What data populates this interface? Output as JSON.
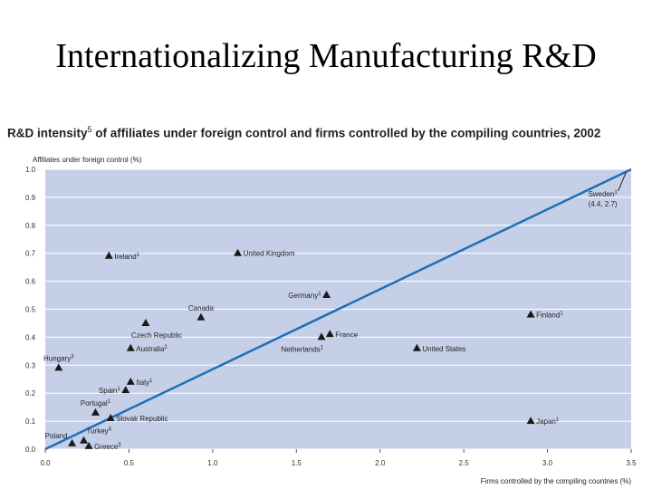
{
  "slide": {
    "title": "Internationalizing Manufacturing R&D"
  },
  "chart_data": {
    "type": "scatter",
    "title": "R&D intensity",
    "title_sup": "5",
    "title_rest": " of affiliates under foreign control and firms controlled by the compiling countries, 2002",
    "ylabel": "Affiliates under foreign control (%)",
    "xlabel": "Firms controlled by the compiling countries (%)",
    "xlim": [
      0,
      3.5
    ],
    "ylim": [
      0,
      1.0
    ],
    "xticks": [
      "0.0",
      "0.5",
      "1.0",
      "1.5",
      "2.0",
      "2.5",
      "3.0",
      "3.5"
    ],
    "yticks": [
      "0.0",
      "0.1",
      "0.2",
      "0.3",
      "0.4",
      "0.5",
      "0.6",
      "0.7",
      "0.8",
      "0.9",
      "1.0"
    ],
    "grid": "horizontal",
    "background_color": "#c5d0e8",
    "line_color": "#1f6fb5",
    "diagonal": {
      "from": [
        0,
        0
      ],
      "to": [
        3.5,
        1.0
      ]
    },
    "points": [
      {
        "label": "Ireland",
        "sup": "1",
        "x": 0.38,
        "y": 0.69,
        "anchor": "right"
      },
      {
        "label": "United Kingdom",
        "sup": "",
        "x": 1.15,
        "y": 0.7,
        "anchor": "right"
      },
      {
        "label": "Germany",
        "sup": "1",
        "x": 1.68,
        "y": 0.55,
        "anchor": "left"
      },
      {
        "label": "Canada",
        "sup": "",
        "x": 0.93,
        "y": 0.47,
        "anchor": "above"
      },
      {
        "label": "Czech Republic",
        "sup": "",
        "x": 0.6,
        "y": 0.45,
        "anchor": "below"
      },
      {
        "label": "Finland",
        "sup": "1",
        "x": 2.9,
        "y": 0.48,
        "anchor": "right"
      },
      {
        "label": "France",
        "sup": "",
        "x": 1.7,
        "y": 0.41,
        "anchor": "right"
      },
      {
        "label": "Netherlands",
        "sup": "1",
        "x": 1.65,
        "y": 0.4,
        "anchor": "below-left"
      },
      {
        "label": "Australia",
        "sup": "2",
        "x": 0.51,
        "y": 0.36,
        "anchor": "right"
      },
      {
        "label": "United States",
        "sup": "",
        "x": 2.22,
        "y": 0.36,
        "anchor": "right"
      },
      {
        "label": "Hungary",
        "sup": "3",
        "x": 0.08,
        "y": 0.29,
        "anchor": "above"
      },
      {
        "label": "Italy",
        "sup": "1",
        "x": 0.51,
        "y": 0.24,
        "anchor": "right"
      },
      {
        "label": "Spain",
        "sup": "1",
        "x": 0.48,
        "y": 0.21,
        "anchor": "left"
      },
      {
        "label": "Portugal",
        "sup": "1",
        "x": 0.3,
        "y": 0.13,
        "anchor": "above"
      },
      {
        "label": "Slovak Republic",
        "sup": "",
        "x": 0.39,
        "y": 0.11,
        "anchor": "right"
      },
      {
        "label": "Japan",
        "sup": "1",
        "x": 2.9,
        "y": 0.1,
        "anchor": "right"
      },
      {
        "label": "Poland",
        "sup": "",
        "x": 0.16,
        "y": 0.02,
        "anchor": "left-above"
      },
      {
        "label": "Turkey",
        "sup": "4",
        "x": 0.23,
        "y": 0.03,
        "anchor": "right-above"
      },
      {
        "label": "Greece",
        "sup": "3",
        "x": 0.26,
        "y": 0.01,
        "anchor": "right"
      }
    ],
    "annotations": [
      {
        "text": "Sweden",
        "sup": "1",
        "line2": "(4.4, 2.7)",
        "x": 3.33,
        "y": 0.89,
        "arrow_to": [
          3.47,
          0.99
        ]
      }
    ]
  }
}
